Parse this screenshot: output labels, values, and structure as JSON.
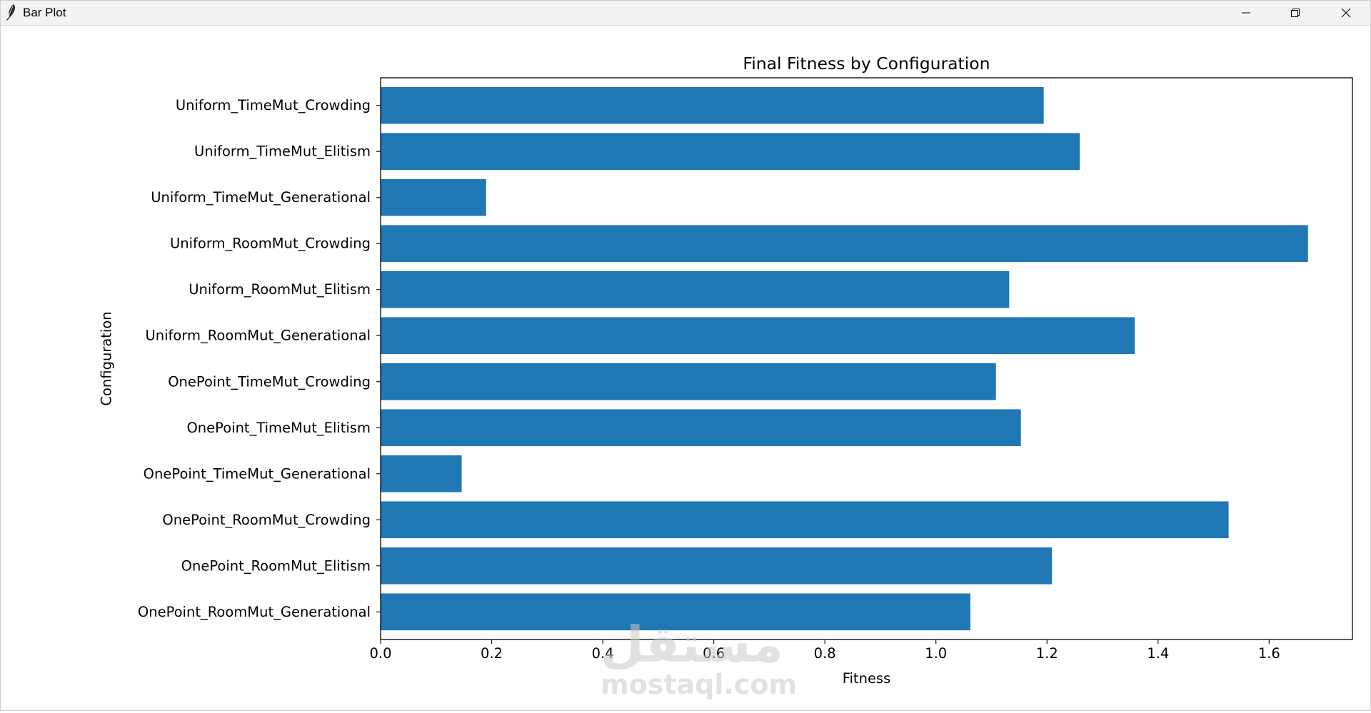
{
  "window": {
    "title": "Bar Plot",
    "icon": "feather-icon",
    "controls": {
      "minimize": "minimize-icon",
      "maximize": "restore-icon",
      "close": "close-icon"
    }
  },
  "watermark": {
    "arabic": "مستقل",
    "latin": "mostaql.com"
  },
  "chart_data": {
    "type": "bar",
    "orientation": "horizontal",
    "title": "Final Fitness by Configuration",
    "xlabel": "Fitness",
    "ylabel": "Configuration",
    "xlim": [
      0,
      1.75
    ],
    "xticks": [
      0.0,
      0.2,
      0.4,
      0.6,
      0.8,
      1.0,
      1.2,
      1.4,
      1.6
    ],
    "xtick_labels": [
      "0.0",
      "0.2",
      "0.4",
      "0.6",
      "0.8",
      "1.0",
      "1.2",
      "1.4",
      "1.6"
    ],
    "categories": [
      "OnePoint_RoomMut_Generational",
      "OnePoint_RoomMut_Elitism",
      "OnePoint_RoomMut_Crowding",
      "OnePoint_TimeMut_Generational",
      "OnePoint_TimeMut_Elitism",
      "OnePoint_TimeMut_Crowding",
      "Uniform_RoomMut_Generational",
      "Uniform_RoomMut_Elitism",
      "Uniform_RoomMut_Crowding",
      "Uniform_TimeMut_Generational",
      "Uniform_TimeMut_Elitism",
      "Uniform_TimeMut_Crowding"
    ],
    "values": [
      1.062,
      1.209,
      1.527,
      0.146,
      1.153,
      1.108,
      1.358,
      1.132,
      1.67,
      0.19,
      1.259,
      1.194
    ],
    "bar_color": "#1f77b4",
    "grid": false,
    "legend": "none"
  }
}
